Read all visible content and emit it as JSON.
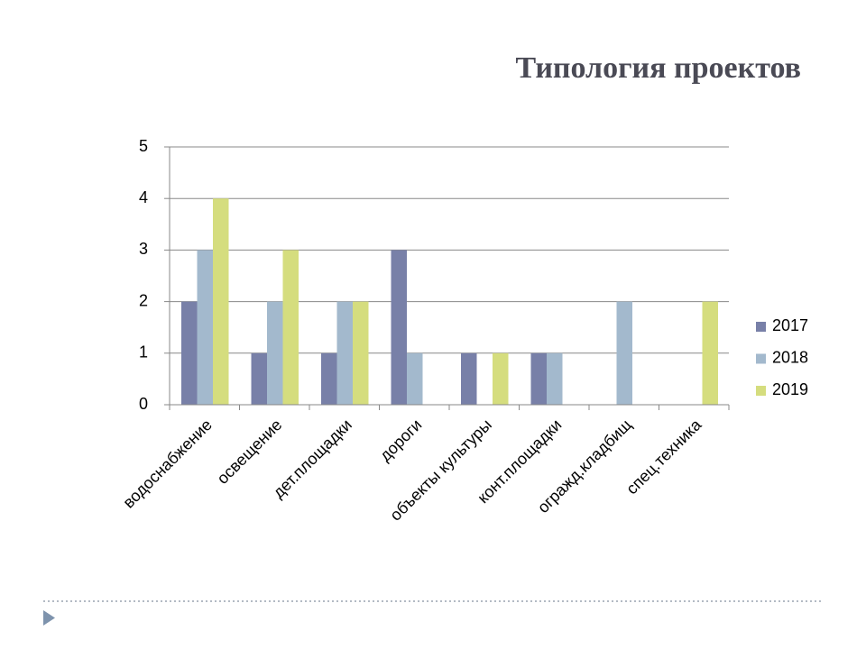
{
  "chart_data": {
    "type": "bar",
    "title": "Типология проектов",
    "categories": [
      "водоснабжение",
      "освещение",
      "дет.площадки",
      "дороги",
      "объекты культуры",
      "конт.площадки",
      "огражд.кладбищ",
      "спец.техника"
    ],
    "series": [
      {
        "name": "2017",
        "color": "#7880a8",
        "values": [
          2,
          1,
          1,
          3,
          1,
          1,
          0,
          0
        ]
      },
      {
        "name": "2018",
        "color": "#a3b9cd",
        "values": [
          3,
          2,
          2,
          1,
          0,
          1,
          2,
          0
        ]
      },
      {
        "name": "2019",
        "color": "#d5dd7e",
        "values": [
          4,
          3,
          2,
          0,
          1,
          0,
          0,
          2
        ]
      }
    ],
    "ylim": [
      0,
      5
    ],
    "yticks": [
      0,
      1,
      2,
      3,
      4,
      5
    ],
    "grid": true,
    "legend": "right"
  }
}
